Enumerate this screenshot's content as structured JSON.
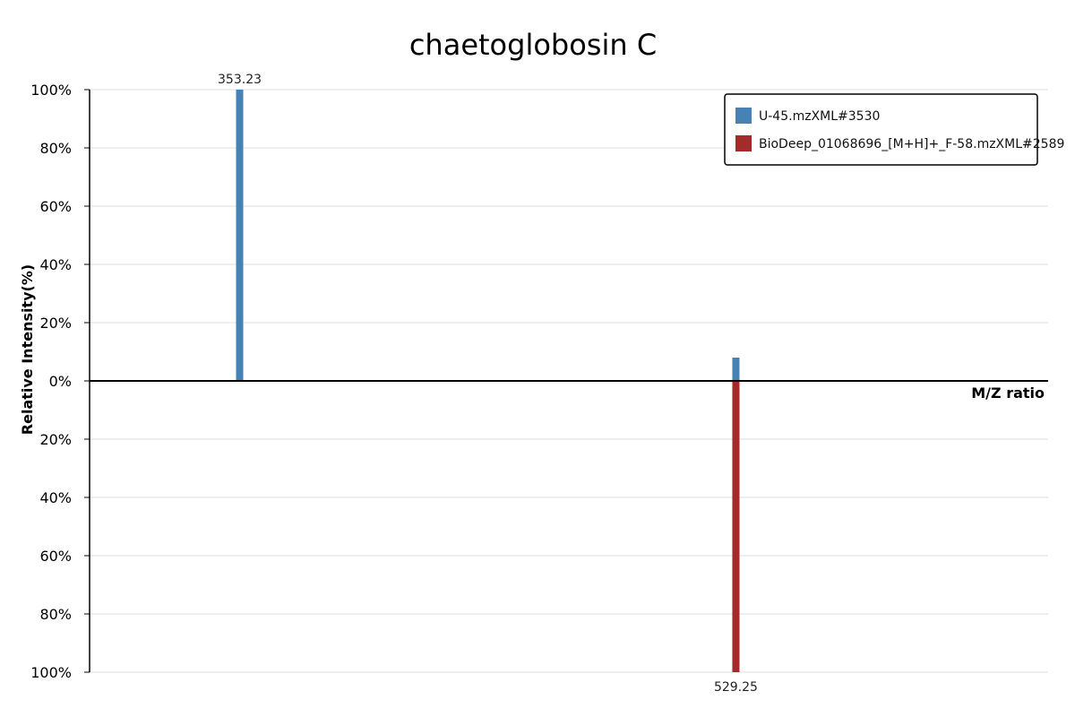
{
  "chart_data": {
    "type": "bar",
    "subtype": "mirror-mass-spectrum",
    "title": "chaetoglobosin C",
    "xlabel": "M/Z ratio",
    "ylabel": "Relative Intensity(%)",
    "y_ticks_top": [
      "100%",
      "80%",
      "60%",
      "40%",
      "20%",
      "0%"
    ],
    "y_ticks_bottom": [
      "20%",
      "40%",
      "60%",
      "80%",
      "100%"
    ],
    "ylim": [
      -100,
      100
    ],
    "xlim": [
      300,
      640
    ],
    "grid": true,
    "legend_position": "top-right",
    "series": [
      {
        "name": "U-45.mzXML#3530",
        "color": "#4682b4",
        "direction": "up",
        "peaks": [
          {
            "mz": 353.23,
            "intensity": 100,
            "label": "353.23"
          },
          {
            "mz": 529.25,
            "intensity": 8,
            "label": ""
          }
        ]
      },
      {
        "name": "BioDeep_01068696_[M+H]+_F-58.mzXML#2589",
        "color": "#a52a2a",
        "direction": "down",
        "peaks": [
          {
            "mz": 529.25,
            "intensity": 100,
            "label": "529.25"
          }
        ]
      }
    ]
  }
}
